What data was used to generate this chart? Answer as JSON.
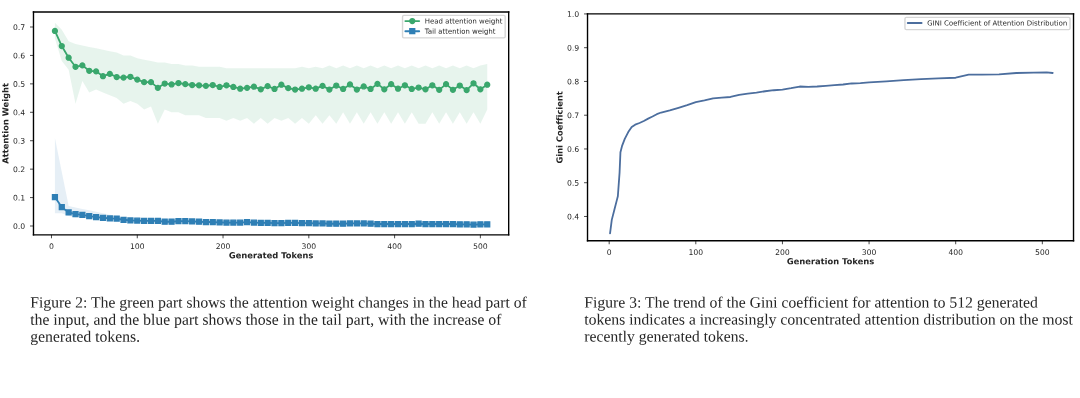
{
  "chart_data": [
    {
      "type": "line",
      "xlabel": "Generated Tokens",
      "ylabel": "Attention Weight",
      "xlim": [
        -21,
        533
      ],
      "ylim": [
        -0.031,
        0.753
      ],
      "xticks": [
        0,
        100,
        200,
        300,
        400,
        500
      ],
      "yticks": [
        {
          "value": 0,
          "label": "0.0"
        },
        0.1,
        0.2,
        0.3,
        0.4,
        0.5,
        0.6,
        0.7
      ],
      "grid": false,
      "legend": "top right",
      "line_style": "solid",
      "x": [
        4,
        12,
        20,
        28,
        36,
        44,
        52,
        60,
        68,
        76,
        84,
        92,
        100,
        108,
        116,
        124,
        132,
        140,
        148,
        156,
        164,
        172,
        180,
        188,
        196,
        204,
        212,
        220,
        228,
        236,
        244,
        252,
        260,
        268,
        276,
        284,
        292,
        300,
        308,
        316,
        324,
        332,
        340,
        348,
        356,
        364,
        372,
        380,
        388,
        396,
        404,
        412,
        420,
        428,
        436,
        444,
        452,
        460,
        468,
        476,
        484,
        492,
        500,
        508
      ],
      "series": [
        {
          "name": "Head attention weight",
          "color": "#3aa76d",
          "marker": "circle",
          "values": [
            0.686,
            0.633,
            0.592,
            0.56,
            0.565,
            0.546,
            0.544,
            0.527,
            0.535,
            0.524,
            0.522,
            0.525,
            0.515,
            0.506,
            0.506,
            0.486,
            0.501,
            0.498,
            0.503,
            0.499,
            0.496,
            0.495,
            0.493,
            0.496,
            0.489,
            0.495,
            0.489,
            0.483,
            0.486,
            0.49,
            0.481,
            0.492,
            0.482,
            0.497,
            0.485,
            0.48,
            0.483,
            0.488,
            0.483,
            0.493,
            0.48,
            0.494,
            0.482,
            0.498,
            0.48,
            0.491,
            0.482,
            0.5,
            0.481,
            0.499,
            0.483,
            0.495,
            0.482,
            0.487,
            0.481,
            0.495,
            0.479,
            0.499,
            0.479,
            0.494,
            0.478,
            0.502,
            0.481,
            0.497
          ],
          "upper": [
            0.715,
            0.69,
            0.65,
            0.64,
            0.635,
            0.63,
            0.625,
            0.62,
            0.615,
            0.61,
            0.6,
            0.6,
            0.59,
            0.585,
            0.58,
            0.575,
            0.575,
            0.57,
            0.57,
            0.565,
            0.565,
            0.56,
            0.56,
            0.56,
            0.56,
            0.555,
            0.555,
            0.555,
            0.555,
            0.555,
            0.555,
            0.555,
            0.555,
            0.555,
            0.555,
            0.555,
            0.56,
            0.555,
            0.56,
            0.555,
            0.565,
            0.555,
            0.565,
            0.555,
            0.565,
            0.555,
            0.565,
            0.555,
            0.565,
            0.555,
            0.565,
            0.555,
            0.565,
            0.555,
            0.565,
            0.555,
            0.565,
            0.555,
            0.565,
            0.555,
            0.565,
            0.555,
            0.565,
            0.57
          ],
          "lower": [
            0.66,
            0.58,
            0.55,
            0.43,
            0.51,
            0.47,
            0.48,
            0.47,
            0.46,
            0.45,
            0.43,
            0.44,
            0.43,
            0.41,
            0.42,
            0.36,
            0.41,
            0.4,
            0.4,
            0.39,
            0.39,
            0.39,
            0.38,
            0.38,
            0.38,
            0.37,
            0.38,
            0.37,
            0.38,
            0.36,
            0.38,
            0.36,
            0.38,
            0.37,
            0.38,
            0.36,
            0.38,
            0.36,
            0.39,
            0.36,
            0.39,
            0.36,
            0.4,
            0.36,
            0.4,
            0.36,
            0.4,
            0.36,
            0.4,
            0.36,
            0.4,
            0.36,
            0.4,
            0.36,
            0.36,
            0.4,
            0.36,
            0.4,
            0.36,
            0.4,
            0.36,
            0.4,
            0.36,
            0.41
          ]
        },
        {
          "name": "Tail attention weight",
          "color": "#2f7fb5",
          "marker": "square",
          "values": [
            0.102,
            0.066,
            0.048,
            0.042,
            0.039,
            0.035,
            0.031,
            0.029,
            0.027,
            0.026,
            0.022,
            0.02,
            0.019,
            0.018,
            0.018,
            0.018,
            0.015,
            0.015,
            0.017,
            0.017,
            0.016,
            0.015,
            0.014,
            0.014,
            0.013,
            0.012,
            0.012,
            0.012,
            0.014,
            0.012,
            0.011,
            0.011,
            0.01,
            0.01,
            0.011,
            0.011,
            0.01,
            0.01,
            0.009,
            0.009,
            0.008,
            0.008,
            0.008,
            0.009,
            0.009,
            0.009,
            0.008,
            0.007,
            0.007,
            0.007,
            0.007,
            0.007,
            0.007,
            0.008,
            0.007,
            0.007,
            0.007,
            0.007,
            0.007,
            0.006,
            0.006,
            0.005,
            0.006,
            0.006
          ],
          "upper": [
            0.31,
            0.19,
            0.07,
            0.065,
            0.06,
            0.055,
            0.05,
            0.045,
            0.04,
            0.035,
            0.03,
            0.028,
            0.027,
            0.026,
            0.026,
            0.026,
            0.023,
            0.023,
            0.025,
            0.025,
            0.024,
            0.023,
            0.022,
            0.022,
            0.021,
            0.02,
            0.02,
            0.02,
            0.022,
            0.02,
            0.019,
            0.019,
            0.018,
            0.018,
            0.019,
            0.019,
            0.018,
            0.018,
            0.017,
            0.017,
            0.016,
            0.016,
            0.016,
            0.017,
            0.017,
            0.017,
            0.016,
            0.015,
            0.015,
            0.015,
            0.015,
            0.015,
            0.015,
            0.016,
            0.015,
            0.015,
            0.015,
            0.015,
            0.015,
            0.014,
            0.014,
            0.013,
            0.014,
            0.014
          ],
          "lower": [
            0.045,
            0.045,
            0.035,
            0.03,
            0.03,
            0.025,
            0.02,
            0.02,
            0.018,
            0.017,
            0.015,
            0.014,
            0.013,
            0.012,
            0.012,
            0.012,
            0.009,
            0.009,
            0.011,
            0.011,
            0.01,
            0.009,
            0.008,
            0.008,
            0.007,
            0.006,
            0.006,
            0.006,
            0.008,
            0.006,
            0.005,
            0.005,
            0.004,
            0.004,
            0.005,
            0.005,
            0.004,
            0.004,
            0.003,
            0.003,
            0.002,
            0.002,
            0.002,
            0.003,
            0.003,
            0.003,
            0.002,
            0.001,
            0.001,
            0.001,
            0.001,
            0.001,
            0.001,
            0.002,
            0.001,
            0.001,
            0.001,
            0.001,
            0.001,
            0.0,
            0.0,
            0.0,
            0.0,
            0.0
          ]
        }
      ],
      "annotations": [
        "Figure 2: The green part shows the attention weight changes in the head part of the input, and the blue part shows those in the tail part, with the increase of generated tokens."
      ]
    },
    {
      "type": "line",
      "xlabel": "Generation Tokens",
      "ylabel": "Gini Coefficient",
      "xlim": [
        -25,
        536
      ],
      "ylim": [
        0.328,
        1.0
      ],
      "xticks": [
        0,
        100,
        200,
        300,
        400,
        500
      ],
      "yticks": [
        0.4,
        0.5,
        0.6,
        0.7,
        0.8,
        0.9,
        {
          "value": 1,
          "label": "1.0"
        }
      ],
      "grid": false,
      "legend": "top right",
      "line_style": "solid",
      "series": [
        {
          "name": "GINI Coefficient of Attention Distribution",
          "color": "#4c6e9e",
          "marker": "none",
          "x": [
            1,
            3,
            6,
            9,
            10,
            12,
            13,
            15,
            18,
            22,
            26,
            30,
            35,
            40,
            45,
            50,
            55,
            60,
            70,
            80,
            90,
            100,
            110,
            120,
            130,
            140,
            150,
            160,
            170,
            180,
            190,
            200,
            210,
            220,
            230,
            240,
            250,
            260,
            270,
            280,
            290,
            300,
            320,
            340,
            360,
            380,
            400,
            405,
            415,
            430,
            450,
            470,
            490,
            505,
            512
          ],
          "values": [
            0.35,
            0.39,
            0.42,
            0.45,
            0.46,
            0.53,
            0.59,
            0.61,
            0.63,
            0.65,
            0.665,
            0.672,
            0.677,
            0.683,
            0.69,
            0.696,
            0.703,
            0.708,
            0.714,
            0.722,
            0.73,
            0.739,
            0.744,
            0.75,
            0.752,
            0.754,
            0.76,
            0.764,
            0.767,
            0.771,
            0.774,
            0.776,
            0.78,
            0.785,
            0.784,
            0.785,
            0.787,
            0.789,
            0.791,
            0.794,
            0.795,
            0.797,
            0.8,
            0.804,
            0.807,
            0.809,
            0.811,
            0.814,
            0.82,
            0.82,
            0.821,
            0.825,
            0.826,
            0.827,
            0.825
          ]
        }
      ],
      "annotations": [
        "Figure 3: The trend of the Gini coefficient for attention to 512 generated tokens indicates a increasingly concentrated attention distribution on the most recently generated tokens."
      ]
    }
  ]
}
